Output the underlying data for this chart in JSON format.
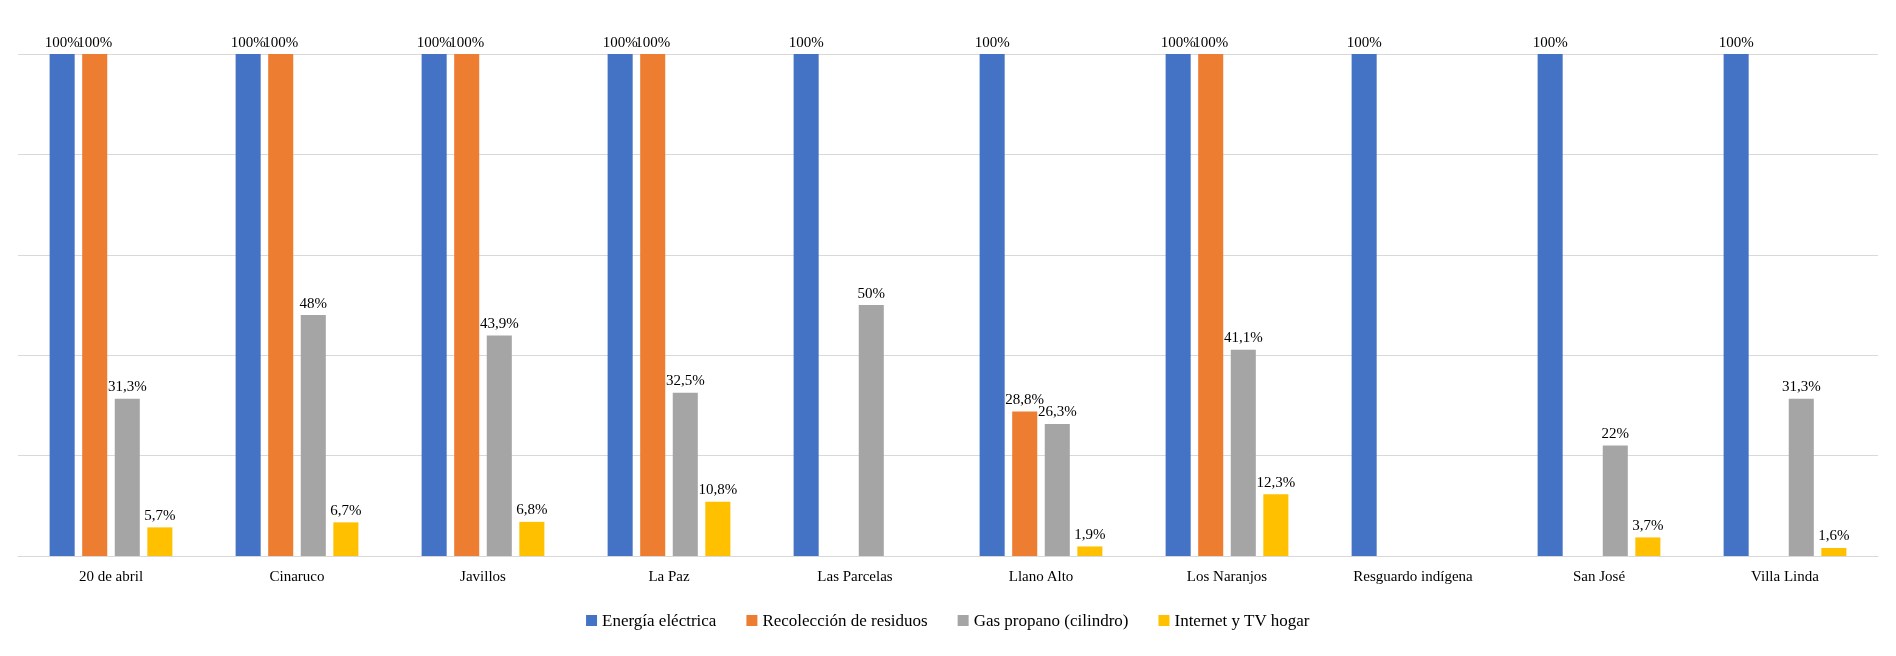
{
  "chart_data": {
    "type": "bar",
    "categories": [
      "20 de abril",
      "Cinaruco",
      "Javillos",
      "La Paz",
      "Las Parcelas",
      "Llano Alto",
      "Los Naranjos",
      "Resguardo indígena",
      "San José",
      "Villa Linda"
    ],
    "series": [
      {
        "name": "Energía eléctrica",
        "color": "#4472c4",
        "values": [
          100,
          100,
          100,
          100,
          100,
          100,
          100,
          100,
          100,
          100
        ],
        "value_labels": [
          "100%",
          "100%",
          "100%",
          "100%",
          "100%",
          "100%",
          "100%",
          "100%",
          "100%",
          "100%"
        ]
      },
      {
        "name": "Recolección de residuos",
        "color": "#ed7d31",
        "values": [
          100,
          100,
          100,
          100,
          null,
          28.8,
          100,
          null,
          null,
          null
        ],
        "value_labels": [
          "100%",
          "100%",
          "100%",
          "100%",
          null,
          "28,8%",
          "100%",
          null,
          null,
          null
        ]
      },
      {
        "name": "Gas propano (cilindro)",
        "color": "#a5a5a5",
        "values": [
          31.3,
          48,
          43.9,
          32.5,
          50,
          26.3,
          41.1,
          null,
          22,
          31.3
        ],
        "value_labels": [
          "31,3%",
          "48%",
          "43,9%",
          "32,5%",
          "50%",
          "26,3%",
          "41,1%",
          null,
          "22%",
          "31,3%"
        ]
      },
      {
        "name": "Internet y TV hogar",
        "color": "#ffc000",
        "values": [
          5.7,
          6.7,
          6.8,
          10.8,
          null,
          1.9,
          12.3,
          null,
          3.7,
          1.6
        ],
        "value_labels": [
          "5,7%",
          "6,7%",
          "6,8%",
          "10,8%",
          null,
          "1,9%",
          "12,3%",
          null,
          "3,7%",
          "1,6%"
        ]
      }
    ],
    "ylim": [
      0,
      100
    ],
    "yticks": [
      {
        "value": 0,
        "label": null
      },
      {
        "value": 20,
        "label": null
      },
      {
        "value": 40,
        "label": null
      },
      {
        "value": 60,
        "label": null
      },
      {
        "value": 80,
        "label": null
      },
      {
        "value": 100,
        "label": null
      }
    ],
    "grid": "y",
    "legend": "bottom",
    "tick_labels": "x"
  }
}
